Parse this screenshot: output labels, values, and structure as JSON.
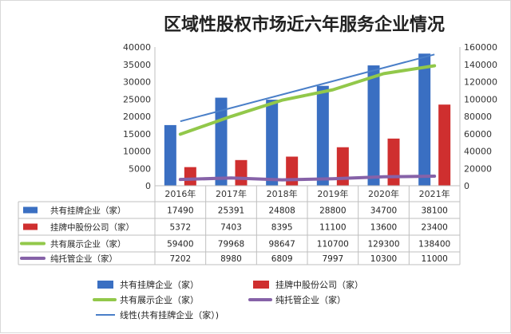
{
  "chart_data": {
    "type": "bar",
    "title": "区域性股权市场近六年服务企业情况",
    "categories": [
      "2016年",
      "2017年",
      "2018年",
      "2019年",
      "2020年",
      "2021年"
    ],
    "y_left": {
      "ticks": [
        "0",
        "5000",
        "10000",
        "15000",
        "20000",
        "25000",
        "30000",
        "35000",
        "40000"
      ],
      "ylim": [
        0,
        40000
      ]
    },
    "y_right": {
      "ticks": [
        "0",
        "20000",
        "40000",
        "60000",
        "80000",
        "100000",
        "120000",
        "140000",
        "160000"
      ],
      "ylim": [
        0,
        160000
      ]
    },
    "series": [
      {
        "name": "共有挂牌企业（家）",
        "type": "bar",
        "axis": "left",
        "color": "#3a6fc2",
        "values": [
          17490,
          25391,
          24808,
          28800,
          34700,
          38100
        ],
        "labels": [
          "17490",
          "25391",
          "24808",
          "28800",
          "34700",
          "38100"
        ]
      },
      {
        "name": "挂牌中股份公司（家）",
        "type": "bar",
        "axis": "left",
        "color": "#cf2f2f",
        "values": [
          5372,
          7403,
          8395,
          11100,
          13600,
          23400
        ],
        "labels": [
          "5372",
          "7403",
          "8395",
          "11100",
          "13600",
          "23400"
        ]
      },
      {
        "name": "共有展示企业（家）",
        "type": "line",
        "axis": "right",
        "color": "#92c84a",
        "values": [
          59400,
          79968,
          98647,
          110700,
          129300,
          138400
        ],
        "labels": [
          "59400",
          "79968",
          "98647",
          "110700",
          "129300",
          "138400"
        ]
      },
      {
        "name": "纯托管企业（家）",
        "type": "line",
        "axis": "right",
        "color": "#8662a8",
        "values": [
          7202,
          8980,
          6809,
          7997,
          10300,
          11000
        ],
        "labels": [
          "7202",
          "8980",
          "6809",
          "7997",
          "10300",
          "11000"
        ]
      }
    ],
    "trendline": {
      "name": "线性(共有挂牌企业（家）)",
      "color": "#4a7fc8",
      "of": "共有挂牌企业（家）"
    },
    "legend": "bottom",
    "grid": false
  }
}
